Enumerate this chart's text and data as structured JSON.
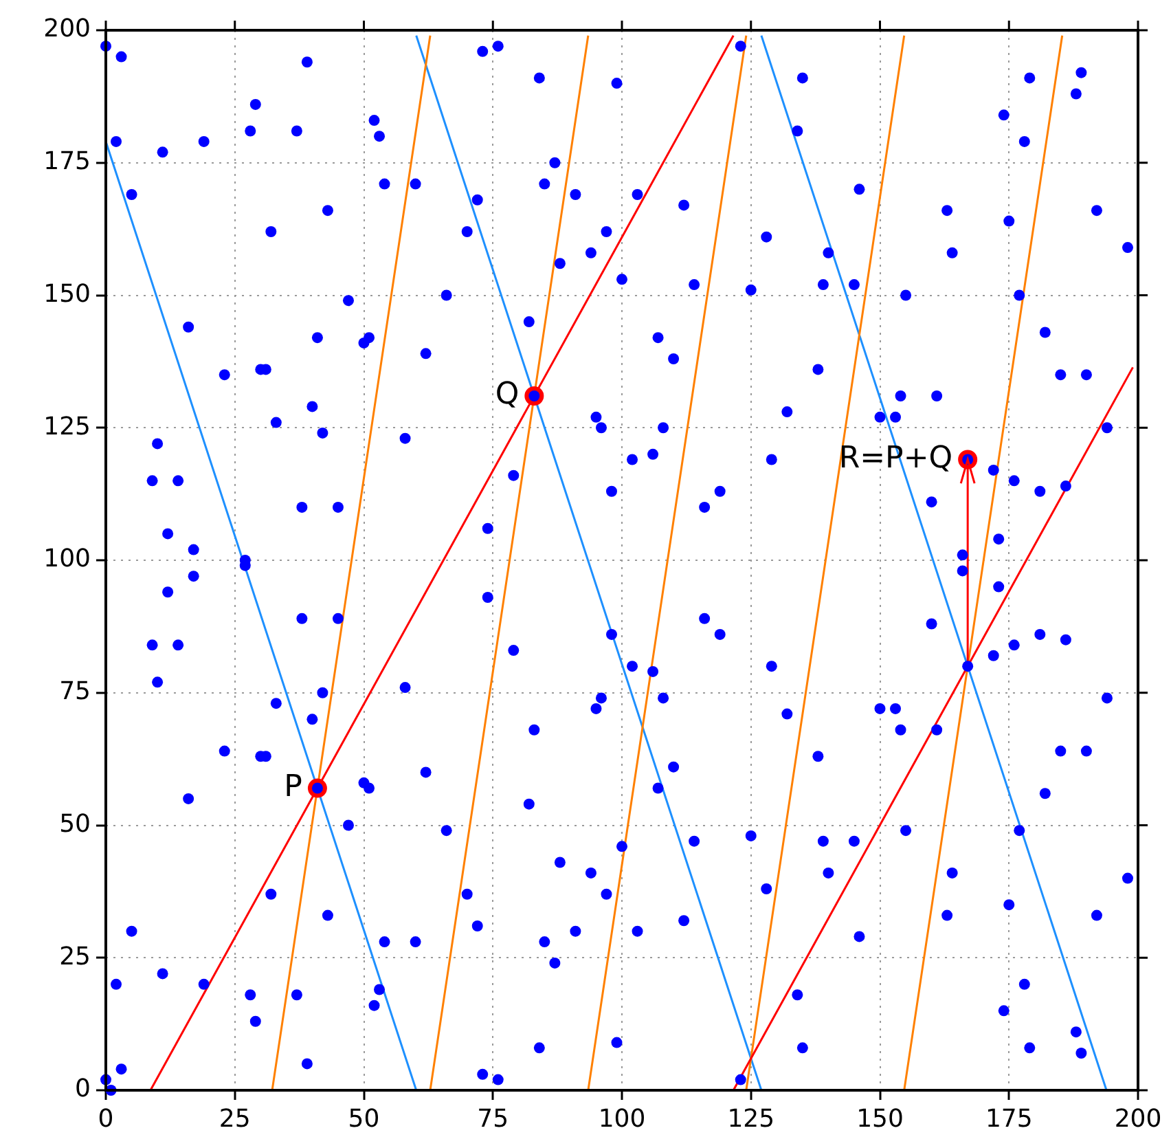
{
  "chart_data": {
    "type": "scatter",
    "xlim": [
      0,
      200
    ],
    "ylim": [
      0,
      200
    ],
    "xticks": [
      0,
      25,
      50,
      75,
      100,
      125,
      150,
      175,
      200
    ],
    "yticks": [
      0,
      25,
      50,
      75,
      100,
      125,
      150,
      175,
      200
    ],
    "grid": true,
    "annotations": [
      {
        "text": "P",
        "x": 41,
        "y": 57
      },
      {
        "text": "Q",
        "x": 83,
        "y": 131
      },
      {
        "text": "R=P+Q",
        "x": 167,
        "y": 119
      }
    ],
    "series": [
      {
        "type": "line",
        "color": "#1e90ff",
        "marker": "none",
        "line_style": "solid",
        "x": [
          0,
          60.15,
          null,
          60.15,
          127.02,
          null,
          127.02,
          193.89
        ],
        "values": [
          179,
          0,
          null,
          199,
          0,
          null,
          199,
          0
        ]
      },
      {
        "type": "line",
        "color": "#ff8000",
        "marker": "none",
        "line_style": "solid",
        "x": [
          32.23,
          62.85,
          null,
          62.85,
          93.46,
          null,
          93.46,
          124.08,
          null,
          124.08,
          154.69,
          null,
          154.69,
          185.31
        ],
        "values": [
          0,
          199,
          null,
          0,
          199,
          null,
          0,
          199,
          null,
          0,
          199,
          null,
          0,
          199
        ]
      },
      {
        "type": "line",
        "color": "#ff0000",
        "marker": "none",
        "line_style": "solid",
        "x": [
          8.65,
          121.6,
          null,
          121.6,
          199
        ],
        "values": [
          0,
          199,
          null,
          0,
          136.4
        ]
      },
      {
        "type": "line",
        "color": "#ff0000",
        "marker": "none",
        "line_style": "solid",
        "x": [
          167,
          167
        ],
        "values": [
          80,
          119
        ]
      },
      {
        "type": "scatter",
        "color": "#ff0000",
        "marker": "circle",
        "x": [
          41,
          83,
          167
        ],
        "values": [
          57,
          131,
          119
        ]
      },
      {
        "type": "scatter",
        "color": "#0000ff",
        "marker": "circle",
        "x": [
          0,
          0,
          1,
          2,
          2,
          3,
          3,
          5,
          5,
          9,
          9,
          10,
          10,
          11,
          11,
          12,
          12,
          14,
          14,
          16,
          16,
          17,
          17,
          19,
          19,
          23,
          23,
          27,
          27,
          28,
          28,
          29,
          29,
          30,
          30,
          31,
          31,
          32,
          32,
          33,
          33,
          37,
          37,
          38,
          38,
          39,
          39,
          40,
          40,
          41,
          41,
          42,
          42,
          43,
          43,
          45,
          45,
          47,
          47,
          50,
          50,
          51,
          51,
          52,
          52,
          53,
          53,
          54,
          54,
          58,
          58,
          60,
          60,
          62,
          62,
          66,
          66,
          70,
          70,
          72,
          72,
          73,
          73,
          74,
          74,
          76,
          76,
          79,
          79,
          82,
          82,
          83,
          83,
          84,
          84,
          85,
          85,
          87,
          87,
          88,
          88,
          91,
          91,
          94,
          94,
          95,
          95,
          96,
          96,
          97,
          97,
          98,
          98,
          99,
          99,
          100,
          100,
          102,
          102,
          103,
          103,
          106,
          106,
          107,
          107,
          108,
          108,
          110,
          110,
          112,
          112,
          114,
          114,
          116,
          116,
          119,
          119,
          123,
          123,
          125,
          125,
          128,
          128,
          129,
          129,
          132,
          132,
          134,
          134,
          135,
          135,
          138,
          138,
          139,
          139,
          140,
          140,
          145,
          145,
          146,
          146,
          150,
          150,
          153,
          153,
          154,
          154,
          155,
          155,
          160,
          160,
          161,
          161,
          163,
          163,
          164,
          164,
          166,
          166,
          167,
          167,
          172,
          172,
          173,
          173,
          174,
          174,
          175,
          175,
          176,
          176,
          177,
          177,
          178,
          178,
          179,
          179,
          181,
          181,
          182,
          182,
          185,
          185,
          186,
          186,
          188,
          188,
          189,
          189,
          190,
          190,
          192,
          192,
          194,
          194,
          198,
          198
        ],
        "values": [
          2,
          197,
          0,
          20,
          179,
          4,
          195,
          30,
          169,
          84,
          115,
          77,
          122,
          22,
          177,
          94,
          105,
          84,
          115,
          55,
          144,
          97,
          102,
          20,
          179,
          64,
          135,
          99,
          100,
          18,
          181,
          13,
          186,
          63,
          136,
          63,
          136,
          37,
          162,
          73,
          126,
          18,
          181,
          89,
          110,
          5,
          194,
          70,
          129,
          57,
          142,
          75,
          124,
          33,
          166,
          89,
          110,
          50,
          149,
          58,
          141,
          57,
          142,
          16,
          183,
          19,
          180,
          28,
          171,
          76,
          123,
          28,
          171,
          60,
          139,
          49,
          150,
          37,
          162,
          31,
          168,
          3,
          196,
          93,
          106,
          2,
          197,
          83,
          116,
          54,
          145,
          68,
          131,
          8,
          191,
          28,
          171,
          24,
          175,
          43,
          156,
          30,
          169,
          41,
          158,
          72,
          127,
          74,
          125,
          37,
          162,
          86,
          113,
          9,
          190,
          46,
          153,
          80,
          119,
          30,
          169,
          79,
          120,
          57,
          142,
          74,
          125,
          61,
          138,
          32,
          167,
          47,
          152,
          89,
          110,
          86,
          113,
          2,
          197,
          48,
          151,
          38,
          161,
          80,
          119,
          71,
          128,
          18,
          181,
          8,
          191,
          63,
          136,
          47,
          152,
          41,
          158,
          47,
          152,
          29,
          170,
          72,
          127,
          72,
          127,
          68,
          131,
          49,
          150,
          88,
          111,
          68,
          131,
          33,
          166,
          41,
          158,
          98,
          101,
          80,
          119,
          82,
          117,
          95,
          104,
          15,
          184,
          35,
          164,
          84,
          115,
          49,
          150,
          20,
          179,
          8,
          191,
          86,
          113,
          56,
          143,
          64,
          135,
          85,
          114,
          11,
          188,
          7,
          192,
          64,
          135,
          33,
          166,
          74,
          125,
          40,
          159
        ]
      }
    ]
  }
}
